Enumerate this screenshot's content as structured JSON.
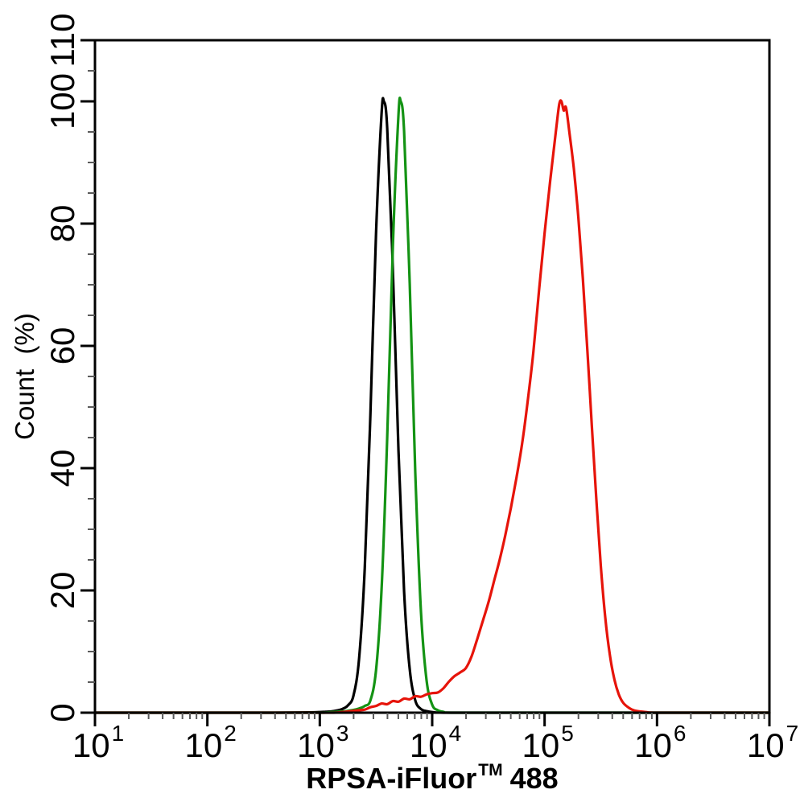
{
  "chart_data": {
    "type": "line",
    "title": "",
    "xlabel": "RPSA-iFluor™ 488",
    "xlabel_parts": {
      "main": "RPSA-iFluor",
      "sup": "TM",
      "tail": "488"
    },
    "ylabel": "Count  (%)",
    "background": "#ffffff",
    "axis_color": "#000000",
    "minor_tick_color": "#5a5a5a",
    "grid": false,
    "legend": null,
    "x_axis": {
      "scale": "log",
      "log_range": [
        1,
        7
      ],
      "decade_base": "10",
      "decade_exponents": [
        "1",
        "2",
        "3",
        "4",
        "5",
        "6",
        "7"
      ],
      "minor_ticks_per_decade": [
        2,
        3,
        4,
        5,
        6,
        7,
        8,
        9
      ]
    },
    "y_axis": {
      "range": [
        0,
        110
      ],
      "major_ticks": [
        0,
        20,
        40,
        60,
        80,
        100,
        110
      ],
      "minor_step": 5
    },
    "series": [
      {
        "name": "black-curve",
        "color": "#000000",
        "points": [
          [
            1.0,
            0
          ],
          [
            2.0,
            0
          ],
          [
            2.6,
            0
          ],
          [
            2.9,
            0.05
          ],
          [
            3.0,
            0.1
          ],
          [
            3.05,
            0.15
          ],
          [
            3.1,
            0.2
          ],
          [
            3.15,
            0.35
          ],
          [
            3.2,
            0.6
          ],
          [
            3.25,
            1.2
          ],
          [
            3.3,
            2.8
          ],
          [
            3.35,
            8.9
          ],
          [
            3.4,
            23.6
          ],
          [
            3.45,
            48.7
          ],
          [
            3.5,
            78.3
          ],
          [
            3.55,
            98
          ],
          [
            3.57,
            100
          ],
          [
            3.6,
            95.6
          ],
          [
            3.65,
            72.6
          ],
          [
            3.7,
            42.9
          ],
          [
            3.75,
            19.8
          ],
          [
            3.8,
            7.1
          ],
          [
            3.85,
            2.0
          ],
          [
            3.9,
            0.6
          ],
          [
            3.95,
            0.25
          ],
          [
            4.0,
            0.1
          ],
          [
            4.1,
            0
          ],
          [
            4.5,
            0
          ],
          [
            5.5,
            0
          ],
          [
            6.5,
            0
          ],
          [
            7.0,
            0
          ]
        ]
      },
      {
        "name": "green-curve",
        "color": "#149314",
        "points": [
          [
            1.0,
            0
          ],
          [
            2.5,
            0
          ],
          [
            3.0,
            0
          ],
          [
            3.1,
            0.1
          ],
          [
            3.2,
            0.2
          ],
          [
            3.25,
            0.3
          ],
          [
            3.3,
            0.45
          ],
          [
            3.35,
            0.7
          ],
          [
            3.4,
            1.1
          ],
          [
            3.45,
            2.0
          ],
          [
            3.5,
            6.9
          ],
          [
            3.55,
            20.2
          ],
          [
            3.6,
            45.0
          ],
          [
            3.65,
            76.2
          ],
          [
            3.7,
            97.8
          ],
          [
            3.72,
            100
          ],
          [
            3.75,
            95.1
          ],
          [
            3.8,
            70.1
          ],
          [
            3.85,
            39.2
          ],
          [
            3.9,
            16.6
          ],
          [
            3.95,
            5.3
          ],
          [
            4.0,
            1.3
          ],
          [
            4.05,
            0.4
          ],
          [
            4.1,
            0.15
          ],
          [
            4.2,
            0
          ],
          [
            5.0,
            0
          ],
          [
            6.0,
            0
          ],
          [
            7.0,
            0
          ]
        ]
      },
      {
        "name": "red-curve",
        "color": "#e6140a",
        "points": [
          [
            1.0,
            0
          ],
          [
            2.8,
            0
          ],
          [
            3.1,
            0
          ],
          [
            3.2,
            0.1
          ],
          [
            3.3,
            0.3
          ],
          [
            3.35,
            0.4
          ],
          [
            3.4,
            0.5
          ],
          [
            3.45,
            0.9
          ],
          [
            3.5,
            1.1
          ],
          [
            3.55,
            1.5
          ],
          [
            3.6,
            1.4
          ],
          [
            3.65,
            1.9
          ],
          [
            3.7,
            1.8
          ],
          [
            3.75,
            2.3
          ],
          [
            3.8,
            2.2
          ],
          [
            3.85,
            2.7
          ],
          [
            3.9,
            2.6
          ],
          [
            3.95,
            3.0
          ],
          [
            4.0,
            3.2
          ],
          [
            4.05,
            3.3
          ],
          [
            4.1,
            4.0
          ],
          [
            4.15,
            5.1
          ],
          [
            4.2,
            6.0
          ],
          [
            4.25,
            6.6
          ],
          [
            4.3,
            7.3
          ],
          [
            4.35,
            9.2
          ],
          [
            4.4,
            12.0
          ],
          [
            4.45,
            15.0
          ],
          [
            4.5,
            18.0
          ],
          [
            4.55,
            21.5
          ],
          [
            4.6,
            25.0
          ],
          [
            4.65,
            29.0
          ],
          [
            4.7,
            33.5
          ],
          [
            4.75,
            38.5
          ],
          [
            4.8,
            44.0
          ],
          [
            4.85,
            51.0
          ],
          [
            4.9,
            59.0
          ],
          [
            4.95,
            69.0
          ],
          [
            5.0,
            78.5
          ],
          [
            5.05,
            87.0
          ],
          [
            5.1,
            95.0
          ],
          [
            5.13,
            99.5
          ],
          [
            5.15,
            100
          ],
          [
            5.17,
            98.5
          ],
          [
            5.19,
            99.0
          ],
          [
            5.22,
            95.0
          ],
          [
            5.26,
            89.0
          ],
          [
            5.3,
            81.0
          ],
          [
            5.34,
            71.0
          ],
          [
            5.38,
            59.5
          ],
          [
            5.42,
            47.0
          ],
          [
            5.46,
            35.0
          ],
          [
            5.5,
            24.0
          ],
          [
            5.54,
            15.5
          ],
          [
            5.58,
            9.5
          ],
          [
            5.62,
            5.5
          ],
          [
            5.66,
            3.0
          ],
          [
            5.7,
            1.6
          ],
          [
            5.75,
            0.8
          ],
          [
            5.8,
            0.35
          ],
          [
            5.9,
            0.1
          ],
          [
            6.0,
            0
          ],
          [
            6.5,
            0
          ],
          [
            7.0,
            0
          ]
        ]
      }
    ]
  }
}
